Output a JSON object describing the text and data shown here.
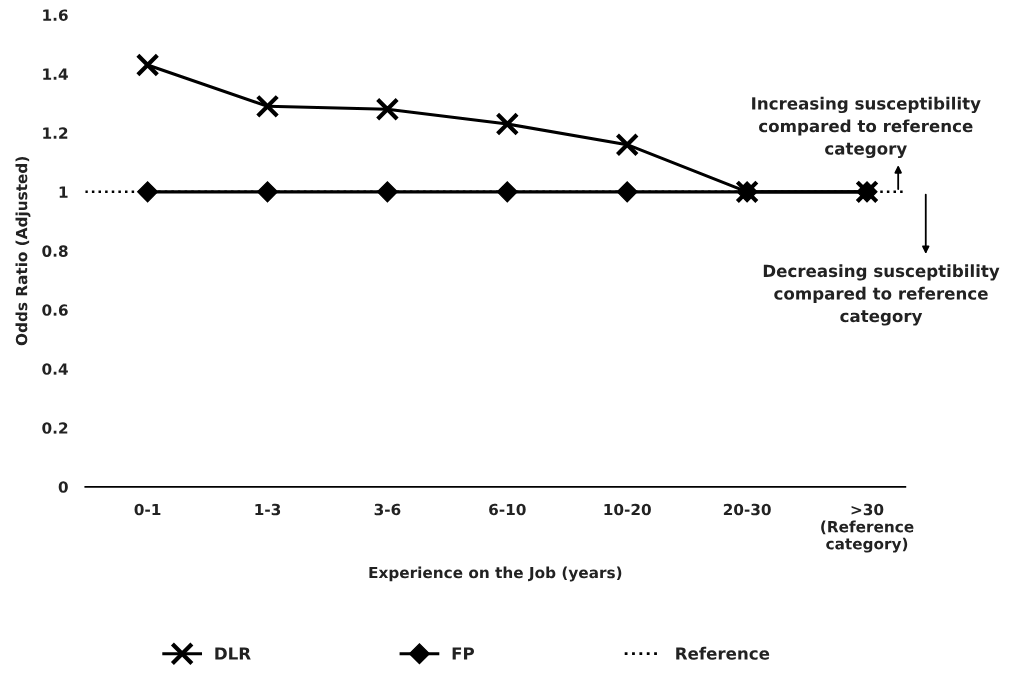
{
  "chart_data": {
    "type": "line",
    "categories": [
      "0-1",
      "1-3",
      "3-6",
      "6-10",
      "10-20",
      "20-30",
      ">30\n(Reference\ncategory)"
    ],
    "xlabel": "Experience on the Job (years)",
    "ylabel": "Odds Ratio (Adjusted)",
    "series": [
      {
        "name": "DLR",
        "color": "#000000",
        "marker": "cross",
        "values": [
          1.43,
          1.29,
          1.28,
          1.23,
          1.16,
          1.0,
          1.0
        ]
      },
      {
        "name": "FP",
        "color": "#000000",
        "marker": "diamond",
        "values": [
          1,
          1,
          1,
          1,
          1,
          1,
          1
        ]
      }
    ],
    "ref_lines": [
      {
        "axis": "y",
        "value": 1,
        "label": "Reference",
        "color": "#000000",
        "line_style": "dotted"
      }
    ],
    "annotations": [
      "Increasing susceptibility\ncompared to reference\ncategory",
      "Decreasing susceptibility\ncompared to reference\ncategory"
    ],
    "ylim": [
      0,
      1.6
    ],
    "yticks": [
      0,
      0.2,
      0.4,
      0.6,
      0.8,
      1,
      1.2,
      1.4,
      1.6
    ],
    "grid": false,
    "legend": "bottom",
    "line_style": "solid"
  }
}
